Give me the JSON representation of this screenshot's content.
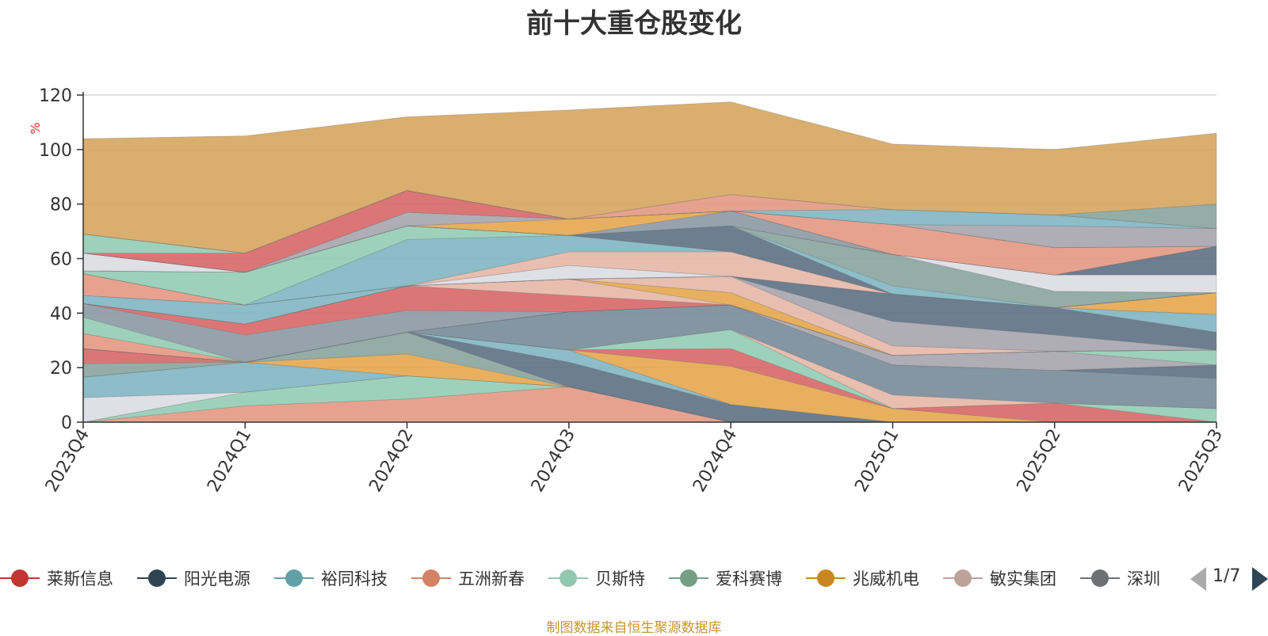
{
  "chart_data": {
    "type": "area",
    "stacked": true,
    "title": "前十大重仓股变化",
    "ylabel": "%",
    "ylim": [
      0,
      120
    ],
    "yticks": [
      0,
      20,
      40,
      60,
      80,
      100,
      120
    ],
    "categories": [
      "2023Q4",
      "2024Q1",
      "2024Q2",
      "2024Q3",
      "2024Q4",
      "2025Q1",
      "2025Q2",
      "2025Q3"
    ],
    "grid": true,
    "source_note": "制图数据来自恒生聚源数据库",
    "legend": {
      "position": "bottom",
      "page": "1/7",
      "items": [
        "莱斯信息",
        "阳光电源",
        "裕同科技",
        "五洲新春",
        "贝斯特",
        "爱科赛博",
        "兆威机电",
        "敏实集团",
        "深圳"
      ]
    },
    "bands": [
      {
        "color": "#e59a86",
        "values": [
          0,
          6,
          8.5,
          13,
          0,
          0,
          0,
          0
        ]
      },
      {
        "color": "#95cdb5",
        "values": [
          0,
          5,
          8.5,
          0,
          0,
          0,
          0,
          0
        ]
      },
      {
        "color": "#dbdde3",
        "values": [
          9,
          0,
          0,
          0,
          0,
          0,
          0,
          0
        ]
      },
      {
        "color": "#82b7c4",
        "values": [
          7.5,
          11,
          0,
          0,
          0,
          0,
          0,
          0
        ]
      },
      {
        "color": "#e6a950",
        "values": [
          0,
          0,
          8,
          0,
          0,
          0,
          0,
          0
        ]
      },
      {
        "color": "#8ba6a0",
        "values": [
          5,
          0,
          8,
          0,
          0,
          0,
          0,
          0
        ]
      },
      {
        "color": "#d96a6a",
        "values": [
          5.5,
          0,
          0,
          0,
          0,
          0,
          0,
          0
        ]
      },
      {
        "color": "#5f7386",
        "values": [
          0,
          0,
          0,
          9,
          6.5,
          0,
          0,
          0
        ]
      },
      {
        "color": "#82b7c4",
        "values": [
          0,
          0,
          0,
          4.5,
          0,
          0,
          0,
          0
        ]
      },
      {
        "color": "#e6a950",
        "values": [
          0,
          0,
          0,
          0,
          14,
          5,
          0,
          0
        ]
      },
      {
        "color": "#d96a6a",
        "values": [
          0,
          0,
          0,
          0,
          6.5,
          0,
          7,
          0
        ]
      },
      {
        "color": "#95cdb5",
        "values": [
          0,
          0,
          0,
          0,
          7,
          0,
          0,
          5
        ]
      },
      {
        "color": "#e6b8a9",
        "values": [
          0,
          0,
          0,
          0,
          0,
          5,
          0,
          0
        ]
      },
      {
        "color": "#7b8d9b",
        "values": [
          0,
          0,
          0,
          14,
          9,
          11,
          12,
          11
        ]
      },
      {
        "color": "#5f7386",
        "values": [
          0,
          0,
          0,
          0,
          0,
          0,
          0,
          5
        ]
      },
      {
        "color": "#a8a6b0",
        "values": [
          0,
          0,
          0,
          0,
          0,
          3.5,
          7,
          0
        ]
      },
      {
        "color": "#95cdb5",
        "values": [
          0,
          0,
          0,
          0,
          0,
          0,
          0,
          5.5
        ]
      },
      {
        "color": "#e59a86",
        "values": [
          5.5,
          0,
          0,
          0,
          0,
          0,
          0,
          0
        ]
      },
      {
        "color": "#95cdb5",
        "values": [
          6,
          0,
          0,
          0,
          0,
          0,
          0,
          0
        ]
      },
      {
        "color": "#8d9ba6",
        "values": [
          5,
          10,
          8,
          0,
          0,
          0,
          0,
          0
        ]
      },
      {
        "color": "#d96a6a",
        "values": [
          0,
          4,
          9,
          6,
          0,
          0,
          0,
          0
        ]
      },
      {
        "color": "#e6b8a9",
        "values": [
          0,
          0,
          0,
          6,
          0,
          0,
          0,
          0
        ]
      },
      {
        "color": "#e6a950",
        "values": [
          0,
          0,
          0,
          0,
          4.5,
          0,
          0,
          0
        ]
      },
      {
        "color": "#e6b8a9",
        "values": [
          0,
          0,
          0,
          0,
          6,
          3.5,
          0,
          0
        ]
      },
      {
        "color": "#a8a6b0",
        "values": [
          0,
          0,
          0,
          0,
          0,
          9,
          6,
          0
        ]
      },
      {
        "color": "#5f7386",
        "values": [
          0,
          0,
          0,
          0,
          0,
          10,
          10,
          6.5
        ]
      },
      {
        "color": "#82b7c4",
        "values": [
          3,
          7,
          0,
          0,
          0,
          0,
          0,
          6.5
        ]
      },
      {
        "color": "#e6a950",
        "values": [
          0,
          0,
          0,
          0,
          0,
          0,
          0,
          8
        ]
      },
      {
        "color": "#e59a86",
        "values": [
          8,
          0,
          0,
          0,
          0,
          0,
          0,
          0
        ]
      },
      {
        "color": "#dbdde3",
        "values": [
          0,
          0,
          0,
          5,
          0,
          0,
          0,
          0
        ]
      },
      {
        "color": "#e6b8a9",
        "values": [
          0,
          0,
          0,
          5,
          9,
          0,
          0,
          0
        ]
      },
      {
        "color": "#82b7c4",
        "values": [
          0,
          0,
          17,
          6,
          0,
          0,
          0,
          0
        ]
      },
      {
        "color": "#95cdb5",
        "values": [
          1,
          12,
          5,
          0,
          0,
          0,
          0,
          0
        ]
      },
      {
        "color": "#5f7386",
        "values": [
          0,
          0,
          0,
          0,
          9.5,
          0,
          0,
          0
        ]
      },
      {
        "color": "#82b7c4",
        "values": [
          0,
          0,
          0,
          0,
          0,
          3,
          0,
          0
        ]
      },
      {
        "color": "#8ba6a0",
        "values": [
          0,
          0,
          0,
          0,
          0,
          11.5,
          6,
          0
        ]
      },
      {
        "color": "#dbdde3",
        "values": [
          6.5,
          0,
          0,
          0,
          0,
          0,
          6,
          6.5
        ]
      },
      {
        "color": "#5f7386",
        "values": [
          0,
          0,
          0,
          0,
          0,
          0,
          0,
          10.5
        ]
      },
      {
        "color": "#8d9ba6",
        "values": [
          0,
          0,
          0,
          0,
          5.5,
          0,
          0,
          0
        ]
      },
      {
        "color": "#e6a950",
        "values": [
          0,
          0,
          0,
          6,
          0,
          0,
          0,
          0
        ]
      },
      {
        "color": "#a8a6b0",
        "values": [
          0,
          0,
          5,
          0,
          0,
          0,
          0,
          0
        ]
      },
      {
        "color": "#e59a86",
        "values": [
          0,
          0,
          0,
          0,
          0,
          11,
          10,
          0
        ]
      },
      {
        "color": "#d96a6a",
        "values": [
          0,
          7,
          8,
          0,
          0,
          0,
          0,
          0
        ]
      },
      {
        "color": "#95cdb5",
        "values": [
          7,
          0,
          0,
          0,
          0,
          0,
          0,
          0
        ]
      },
      {
        "color": "#a8a6b0",
        "values": [
          0,
          0,
          0,
          0,
          0,
          0,
          8,
          6.5
        ]
      },
      {
        "color": "#82b7c4",
        "values": [
          0,
          0,
          0,
          0,
          0,
          5.5,
          4,
          0
        ]
      },
      {
        "color": "#e59a86",
        "values": [
          0,
          0,
          0,
          0,
          6,
          0,
          0,
          0
        ]
      },
      {
        "color": "#8ba6a0",
        "values": [
          0,
          0,
          0,
          0,
          0,
          0,
          0,
          9
        ]
      },
      {
        "color": "#d6a763",
        "values": [
          35,
          43,
          27,
          40,
          34,
          24,
          24,
          26
        ]
      }
    ]
  },
  "legend_colors": [
    "#c23531",
    "#2f4554",
    "#61a0a8",
    "#d48265",
    "#91c7ae",
    "#749f83",
    "#ca8622",
    "#bda29a",
    "#6e7074"
  ]
}
